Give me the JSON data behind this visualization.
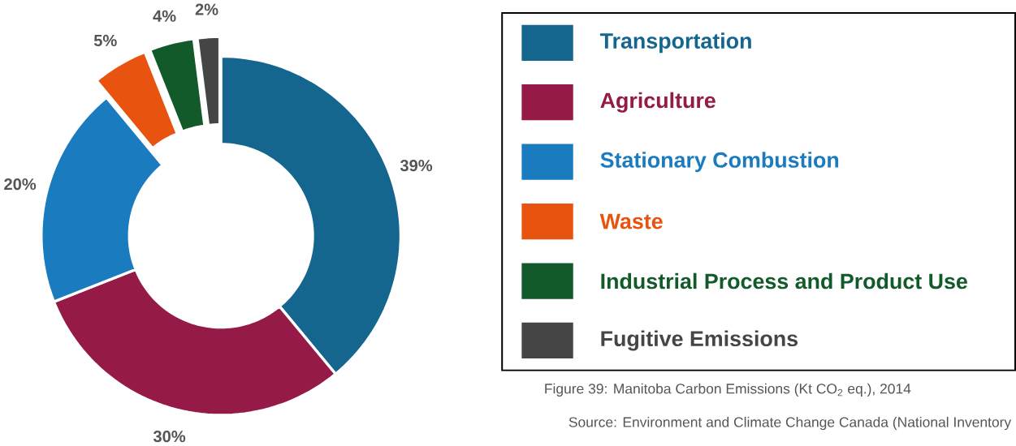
{
  "chart_data": {
    "type": "donut",
    "categories": [
      "Transportation",
      "Agriculture",
      "Stationary Combustion",
      "Waste",
      "Industrial Process and Product Use",
      "Fugitive Emissions"
    ],
    "values": [
      39,
      30,
      20,
      5,
      4,
      2
    ],
    "colors": [
      "#14668f",
      "#961a47",
      "#1b7bbf",
      "#e8530f",
      "#125a2a",
      "#454545"
    ],
    "value_labels": [
      "39%",
      "30%",
      "20%",
      "5%",
      "4%",
      "2%"
    ],
    "legend": "right",
    "annotations": [
      "Figure 39: Manitoba Carbon Emissions (Kt CO$_{2}$ eq.), 2014",
      "Source: Environment and Climate Change Canada (National Inventory"
    ]
  }
}
